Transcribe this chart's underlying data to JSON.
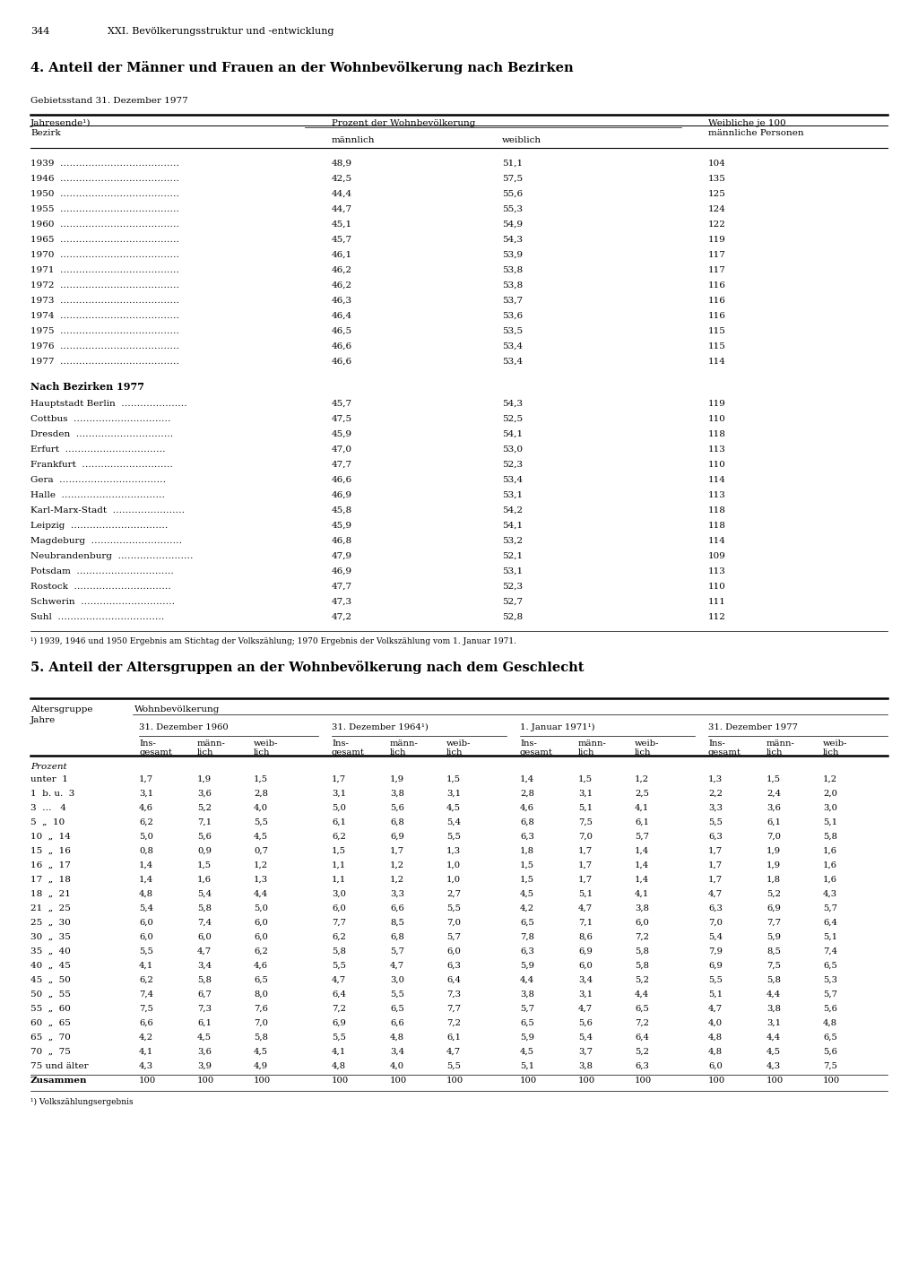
{
  "page_num": "344",
  "page_header": "XXI. Bevölkerungsstruktur und -entwicklung",
  "section4_title": "4. Anteil der Männer und Frauen an der Wohnbevölkerung nach Bezirken",
  "section4_subtitle": "Gebietsstand 31. Dezember 1977",
  "years_data": [
    [
      "1939",
      "48,9",
      "51,1",
      "104"
    ],
    [
      "1946",
      "42,5",
      "57,5",
      "135"
    ],
    [
      "1950",
      "44,4",
      "55,6",
      "125"
    ],
    [
      "1955",
      "44,7",
      "55,3",
      "124"
    ],
    [
      "1960",
      "45,1",
      "54,9",
      "122"
    ],
    [
      "1965",
      "45,7",
      "54,3",
      "119"
    ],
    [
      "1970",
      "46,1",
      "53,9",
      "117"
    ],
    [
      "1971",
      "46,2",
      "53,8",
      "117"
    ],
    [
      "1972",
      "46,2",
      "53,8",
      "116"
    ],
    [
      "1973",
      "46,3",
      "53,7",
      "116"
    ],
    [
      "1974",
      "46,4",
      "53,6",
      "116"
    ],
    [
      "1975",
      "46,5",
      "53,5",
      "115"
    ],
    [
      "1976",
      "46,6",
      "53,4",
      "115"
    ],
    [
      "1977",
      "46,6",
      "53,4",
      "114"
    ]
  ],
  "bezirken_label": "Nach Bezirken 1977",
  "bezirken_data": [
    [
      "Hauptstadt Berlin",
      "45,7",
      "54,3",
      "119"
    ],
    [
      "Cottbus",
      "47,5",
      "52,5",
      "110"
    ],
    [
      "Dresden",
      "45,9",
      "54,1",
      "118"
    ],
    [
      "Erfurt",
      "47,0",
      "53,0",
      "113"
    ],
    [
      "Frankfurt",
      "47,7",
      "52,3",
      "110"
    ],
    [
      "Gera",
      "46,6",
      "53,4",
      "114"
    ],
    [
      "Halle",
      "46,9",
      "53,1",
      "113"
    ],
    [
      "Karl-Marx-Stadt",
      "45,8",
      "54,2",
      "118"
    ],
    [
      "Leipzig",
      "45,9",
      "54,1",
      "118"
    ],
    [
      "Magdeburg",
      "46,8",
      "53,2",
      "114"
    ],
    [
      "Neubrandenburg",
      "47,9",
      "52,1",
      "109"
    ],
    [
      "Potsdam",
      "46,9",
      "53,1",
      "113"
    ],
    [
      "Rostock",
      "47,7",
      "52,3",
      "110"
    ],
    [
      "Schwerin",
      "47,3",
      "52,7",
      "111"
    ],
    [
      "Suhl",
      "47,2",
      "52,8",
      "112"
    ]
  ],
  "footnote4": "¹) 1939, 1946 und 1950 Ergebnis am Stichtag der Volkszählung; 1970 Ergebnis der Volkszählung vom 1. Januar 1971.",
  "section5_title": "5. Anteil der Altersgruppen an der Wohnbevölkerung nach dem Geschlecht",
  "table5_date_headers": [
    "31. Dezember 1960",
    "31. Dezember 1964¹)",
    "1. Januar 1971¹)",
    "31. Dezember 1977"
  ],
  "table5_prozent": "Prozent",
  "table5_data": [
    [
      "unter  1",
      "1,7",
      "1,9",
      "1,5",
      "1,7",
      "1,9",
      "1,5",
      "1,4",
      "1,5",
      "1,2",
      "1,3",
      "1,5",
      "1,2"
    ],
    [
      "1  b. u.  3",
      "3,1",
      "3,6",
      "2,8",
      "3,1",
      "3,8",
      "3,1",
      "2,8",
      "3,1",
      "2,5",
      "2,2",
      "2,4",
      "2,0"
    ],
    [
      "3  …   4",
      "4,6",
      "5,2",
      "4,0",
      "5,0",
      "5,6",
      "4,5",
      "4,6",
      "5,1",
      "4,1",
      "3,3",
      "3,6",
      "3,0"
    ],
    [
      "5  „  10",
      "6,2",
      "7,1",
      "5,5",
      "6,1",
      "6,8",
      "5,4",
      "6,8",
      "7,5",
      "6,1",
      "5,5",
      "6,1",
      "5,1"
    ],
    [
      "10  „  14",
      "5,0",
      "5,6",
      "4,5",
      "6,2",
      "6,9",
      "5,5",
      "6,3",
      "7,0",
      "5,7",
      "6,3",
      "7,0",
      "5,8"
    ],
    [
      "15  „  16",
      "0,8",
      "0,9",
      "0,7",
      "1,5",
      "1,7",
      "1,3",
      "1,8",
      "1,7",
      "1,4",
      "1,7",
      "1,9",
      "1,6"
    ],
    [
      "16  „  17",
      "1,4",
      "1,5",
      "1,2",
      "1,1",
      "1,2",
      "1,0",
      "1,5",
      "1,7",
      "1,4",
      "1,7",
      "1,9",
      "1,6"
    ],
    [
      "17  „  18",
      "1,4",
      "1,6",
      "1,3",
      "1,1",
      "1,2",
      "1,0",
      "1,5",
      "1,7",
      "1,4",
      "1,7",
      "1,8",
      "1,6"
    ],
    [
      "18  „  21",
      "4,8",
      "5,4",
      "4,4",
      "3,0",
      "3,3",
      "2,7",
      "4,5",
      "5,1",
      "4,1",
      "4,7",
      "5,2",
      "4,3"
    ],
    [
      "21  „  25",
      "5,4",
      "5,8",
      "5,0",
      "6,0",
      "6,6",
      "5,5",
      "4,2",
      "4,7",
      "3,8",
      "6,3",
      "6,9",
      "5,7"
    ],
    [
      "25  „  30",
      "6,0",
      "7,4",
      "6,0",
      "7,7",
      "8,5",
      "7,0",
      "6,5",
      "7,1",
      "6,0",
      "7,0",
      "7,7",
      "6,4"
    ],
    [
      "30  „  35",
      "6,0",
      "6,0",
      "6,0",
      "6,2",
      "6,8",
      "5,7",
      "7,8",
      "8,6",
      "7,2",
      "5,4",
      "5,9",
      "5,1"
    ],
    [
      "35  „  40",
      "5,5",
      "4,7",
      "6,2",
      "5,8",
      "5,7",
      "6,0",
      "6,3",
      "6,9",
      "5,8",
      "7,9",
      "8,5",
      "7,4"
    ],
    [
      "40  „  45",
      "4,1",
      "3,4",
      "4,6",
      "5,5",
      "4,7",
      "6,3",
      "5,9",
      "6,0",
      "5,8",
      "6,9",
      "7,5",
      "6,5"
    ],
    [
      "45  „  50",
      "6,2",
      "5,8",
      "6,5",
      "4,7",
      "3,0",
      "6,4",
      "4,4",
      "3,4",
      "5,2",
      "5,5",
      "5,8",
      "5,3"
    ],
    [
      "50  „  55",
      "7,4",
      "6,7",
      "8,0",
      "6,4",
      "5,5",
      "7,3",
      "3,8",
      "3,1",
      "4,4",
      "5,1",
      "4,4",
      "5,7"
    ],
    [
      "55  „  60",
      "7,5",
      "7,3",
      "7,6",
      "7,2",
      "6,5",
      "7,7",
      "5,7",
      "4,7",
      "6,5",
      "4,7",
      "3,8",
      "5,6"
    ],
    [
      "60  „  65",
      "6,6",
      "6,1",
      "7,0",
      "6,9",
      "6,6",
      "7,2",
      "6,5",
      "5,6",
      "7,2",
      "4,0",
      "3,1",
      "4,8"
    ],
    [
      "65  „  70",
      "4,2",
      "4,5",
      "5,8",
      "5,5",
      "4,8",
      "6,1",
      "5,9",
      "5,4",
      "6,4",
      "4,8",
      "4,4",
      "6,5"
    ],
    [
      "70  „  75",
      "4,1",
      "3,6",
      "4,5",
      "4,1",
      "3,4",
      "4,7",
      "4,5",
      "3,7",
      "5,2",
      "4,8",
      "4,5",
      "5,6"
    ],
    [
      "75 und älter",
      "4,3",
      "3,9",
      "4,9",
      "4,8",
      "4,0",
      "5,5",
      "5,1",
      "3,8",
      "6,3",
      "6,0",
      "4,3",
      "7,5"
    ],
    [
      "Zusammen",
      "100",
      "100",
      "100",
      "100",
      "100",
      "100",
      "100",
      "100",
      "100",
      "100",
      "100",
      "100"
    ]
  ],
  "footnote5": "¹) Volkszählungsergebnis"
}
